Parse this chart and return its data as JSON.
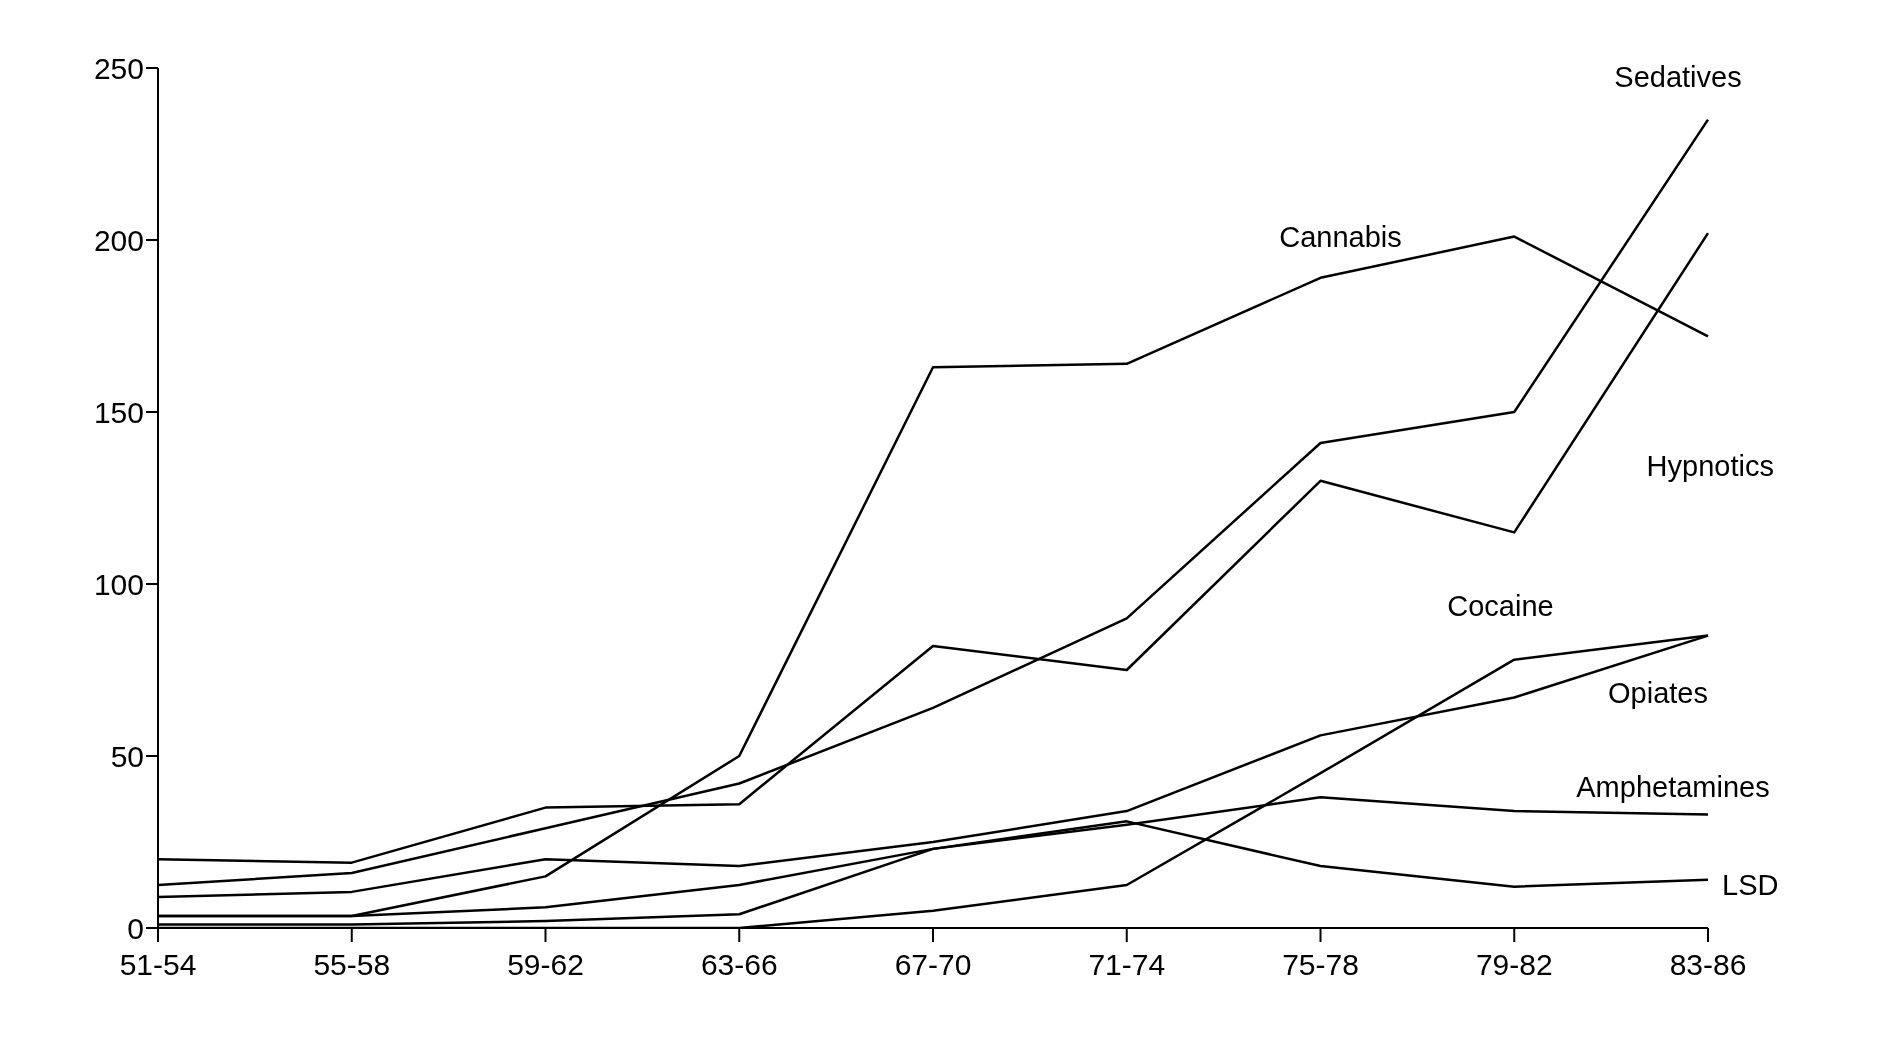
{
  "chart_data": {
    "type": "line",
    "categories": [
      "51-54",
      "55-58",
      "59-62",
      "63-66",
      "67-70",
      "71-74",
      "75-78",
      "79-82",
      "83-86"
    ],
    "series": [
      {
        "name": "Sedatives",
        "color": "#000000",
        "values": [
          12.5,
          16,
          29,
          42,
          64,
          90,
          141,
          150,
          235
        ]
      },
      {
        "name": "Cannabis",
        "color": "#000000",
        "values": [
          3.5,
          3.5,
          15,
          50,
          163,
          164,
          189,
          201,
          172
        ]
      },
      {
        "name": "Hypnotics",
        "color": "#000000",
        "values": [
          20,
          19,
          35,
          36,
          82,
          75,
          130,
          115,
          202
        ]
      },
      {
        "name": "Cocaine",
        "color": "#000000",
        "values": [
          0,
          0,
          0,
          0,
          5,
          12.5,
          45,
          78,
          85
        ]
      },
      {
        "name": "Opiates",
        "color": "#000000",
        "values": [
          9,
          10.5,
          20,
          18,
          25,
          34,
          56,
          67,
          85
        ]
      },
      {
        "name": "Amphetamines",
        "color": "#000000",
        "values": [
          3.5,
          3.5,
          6,
          12.5,
          23,
          30,
          38,
          34,
          33
        ]
      },
      {
        "name": "LSD",
        "color": "#000000",
        "values": [
          1,
          1,
          2,
          4,
          23,
          31,
          18,
          12,
          14
        ]
      }
    ],
    "ylim": [
      0,
      250
    ],
    "yticks": [
      0,
      50,
      100,
      150,
      200,
      250
    ],
    "grid": false,
    "legend": false,
    "marker": "none",
    "line_style": "solid"
  }
}
